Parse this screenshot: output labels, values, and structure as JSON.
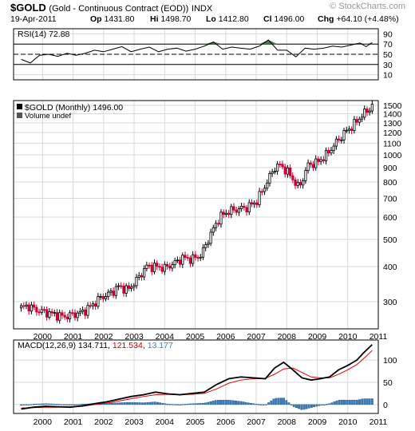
{
  "header": {
    "symbol": "$GOLD",
    "description": "(Gold - Continuous Contract (EOD))",
    "exchange": "INDX",
    "watermark": "© StockCharts.com",
    "date": "19-Apr-2011",
    "open_label": "Op",
    "open": "1431.80",
    "high_label": "Hi",
    "high": "1498.70",
    "low_label": "Lo",
    "low": "1412.80",
    "close_label": "Cl",
    "close": "1496.00",
    "change_label": "Chg",
    "change": "+64.10 (+4.48%)"
  },
  "colors": {
    "up": "#000000",
    "down": "#cc0033",
    "rsi_fill": "#4a7a4a",
    "macd_line": "#000000",
    "macd_signal": "#e00000",
    "histogram": "#3a7fbf",
    "grid": "#d9d9d9"
  },
  "chart_data": [
    {
      "type": "line",
      "panel": "rsi",
      "legend": "RSI(14) 72.88",
      "y_ticks": [
        90,
        70,
        50,
        30,
        10
      ],
      "reference_lines": [
        70,
        50,
        30
      ],
      "ylim": [
        0,
        100
      ],
      "x": [
        1999.8,
        2000.1,
        2000.4,
        2000.7,
        2001.0,
        2001.3,
        2001.6,
        2001.9,
        2002.2,
        2002.5,
        2002.8,
        2003.1,
        2003.4,
        2003.7,
        2004.0,
        2004.3,
        2004.6,
        2004.9,
        2005.2,
        2005.5,
        2005.8,
        2006.1,
        2006.4,
        2006.7,
        2007.0,
        2007.3,
        2007.6,
        2007.9,
        2008.2,
        2008.5,
        2008.8,
        2009.1,
        2009.4,
        2009.7,
        2010.0,
        2010.3,
        2010.6,
        2010.9,
        2011.1,
        2011.3
      ],
      "values": [
        40,
        33,
        48,
        50,
        46,
        52,
        48,
        52,
        58,
        55,
        60,
        65,
        55,
        60,
        64,
        55,
        60,
        62,
        56,
        60,
        66,
        74,
        60,
        64,
        62,
        60,
        66,
        78,
        58,
        58,
        45,
        62,
        60,
        62,
        66,
        64,
        68,
        72,
        65,
        72.88
      ]
    },
    {
      "type": "candlestick",
      "panel": "price",
      "legend": "$GOLD (Monthly) 1496.00",
      "volume_legend": "Volume undef",
      "y_scale": "log",
      "y_ticks": [
        1500,
        1400,
        1300,
        1200,
        1100,
        1000,
        900,
        800,
        700,
        600,
        500,
        400,
        300
      ],
      "x_ticks": [
        "2000",
        "2001",
        "2002",
        "2003",
        "2004",
        "2005",
        "2006",
        "2007",
        "2008",
        "2009",
        "2010",
        "2011"
      ],
      "ylim": [
        240,
        1560
      ],
      "x": [
        1999.8,
        2000.0,
        2000.3,
        2000.6,
        2000.9,
        2001.2,
        2001.5,
        2001.8,
        2002.1,
        2002.4,
        2002.7,
        2003.0,
        2003.3,
        2003.6,
        2003.9,
        2004.2,
        2004.5,
        2004.8,
        2005.1,
        2005.4,
        2005.7,
        2006.0,
        2006.3,
        2006.6,
        2006.9,
        2007.2,
        2007.5,
        2007.8,
        2008.1,
        2008.3,
        2008.6,
        2008.9,
        2009.2,
        2009.5,
        2009.8,
        2010.1,
        2010.4,
        2010.7,
        2010.95,
        2011.1,
        2011.3
      ],
      "values": [
        285,
        290,
        280,
        275,
        270,
        265,
        270,
        275,
        290,
        310,
        320,
        340,
        330,
        360,
        400,
        400,
        395,
        410,
        430,
        425,
        440,
        520,
        600,
        630,
        640,
        650,
        680,
        780,
        900,
        920,
        850,
        760,
        920,
        940,
        1000,
        1100,
        1200,
        1280,
        1380,
        1420,
        1496
      ]
    },
    {
      "type": "line",
      "panel": "macd",
      "legend": "MACD(12,26,9) 134.711, 121.534, 13.177",
      "y_ticks": [
        100,
        50,
        0
      ],
      "ylim": [
        -20,
        145
      ],
      "x": [
        1999.8,
        2000.2,
        2000.6,
        2001.0,
        2001.4,
        2001.8,
        2002.2,
        2002.6,
        2003.0,
        2003.4,
        2003.8,
        2004.2,
        2004.6,
        2005.0,
        2005.4,
        2005.8,
        2006.2,
        2006.6,
        2007.0,
        2007.4,
        2007.8,
        2008.1,
        2008.4,
        2008.7,
        2009.0,
        2009.3,
        2009.6,
        2009.9,
        2010.2,
        2010.5,
        2010.8,
        2011.0,
        2011.3
      ],
      "series": [
        {
          "name": "MACD(12,26,9)",
          "values": [
            -10,
            -6,
            -4,
            -5,
            -6,
            -3,
            2,
            6,
            12,
            18,
            22,
            28,
            24,
            22,
            25,
            28,
            45,
            58,
            62,
            60,
            58,
            82,
            95,
            78,
            60,
            55,
            58,
            62,
            78,
            88,
            100,
            115,
            134.711
          ]
        },
        {
          "name": "signal",
          "values": [
            -8,
            -7,
            -6,
            -6,
            -5,
            -4,
            0,
            3,
            8,
            13,
            18,
            22,
            23,
            22,
            23,
            25,
            35,
            48,
            55,
            58,
            59,
            68,
            80,
            82,
            72,
            62,
            60,
            60,
            68,
            78,
            90,
            102,
            121.534
          ]
        },
        {
          "name": "histogram",
          "values": [
            -2,
            1,
            2,
            1,
            -1,
            1,
            2,
            3,
            4,
            5,
            4,
            6,
            1,
            0,
            2,
            3,
            10,
            10,
            7,
            2,
            -1,
            14,
            15,
            -4,
            -12,
            -7,
            -2,
            2,
            10,
            10,
            10,
            13,
            13.177
          ]
        }
      ]
    }
  ]
}
